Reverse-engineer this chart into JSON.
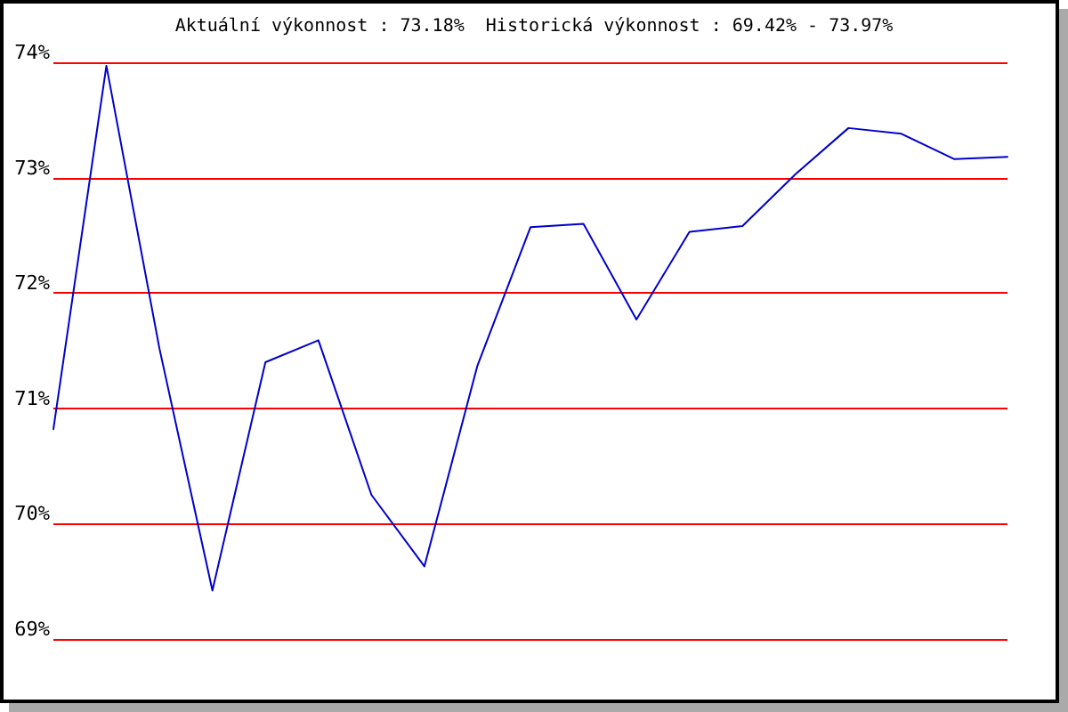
{
  "chart_data": {
    "type": "line",
    "title": "Aktuální výkonnost : 73.18%  Historická výkonnost : 69.42% - 73.97%",
    "categories": [
      null,
      null,
      null,
      null,
      null,
      null,
      null,
      null,
      null,
      null,
      null,
      null,
      null,
      null,
      null,
      null,
      null,
      null,
      null
    ],
    "series": [
      {
        "color": "#0000cc",
        "values": [
          70.82,
          73.97,
          71.52,
          69.42,
          71.4,
          71.59,
          70.25,
          69.63,
          71.37,
          72.57,
          72.6,
          71.77,
          72.53,
          72.58,
          73.03,
          73.43,
          73.38,
          73.16,
          73.18
        ]
      }
    ],
    "ylim": [
      69,
      74
    ],
    "yticks": [
      {
        "value": 69,
        "label": "69%"
      },
      {
        "value": 70,
        "label": "70%"
      },
      {
        "value": 71,
        "label": "71%"
      },
      {
        "value": 72,
        "label": "72%"
      },
      {
        "value": 73,
        "label": "73%"
      },
      {
        "value": 74,
        "label": "74%"
      }
    ],
    "grid": "y",
    "tick_labels": "y",
    "marker": "none",
    "line_style": "solid"
  }
}
